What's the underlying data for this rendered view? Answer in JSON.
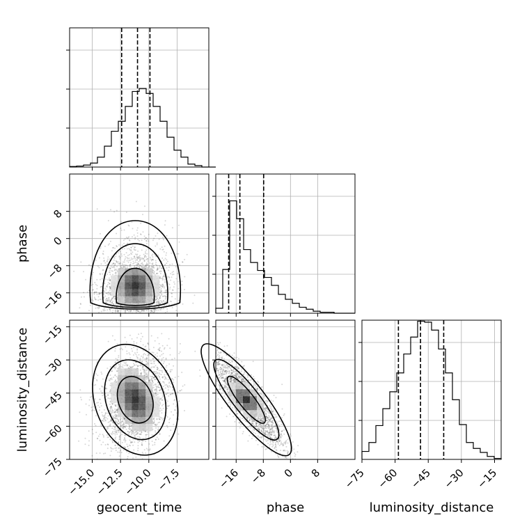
{
  "chart_data": {
    "type": "corner",
    "parameters": [
      "geocent_time",
      "phase",
      "luminosity_distance"
    ],
    "axis_labels": {
      "geocent_time": "geocent_time",
      "phase": "phase",
      "luminosity_distance": "luminosity_distance"
    },
    "ranges": {
      "geocent_time": [
        -17,
        -4.7
      ],
      "phase": [
        -22,
        19
      ],
      "luminosity_distance": [
        -75,
        -12
      ]
    },
    "ticks": {
      "geocent_time": {
        "values": [
          -15,
          -12.5,
          -10,
          -7.5
        ],
        "labels": [
          "−15.0",
          "−12.5",
          "−10.0",
          "−7.5"
        ]
      },
      "phase": {
        "values": [
          -16,
          -8,
          0,
          8
        ],
        "labels": [
          "−16",
          "−8",
          "0",
          "8"
        ]
      },
      "luminosity_distance": {
        "values": [
          -75,
          -60,
          -45,
          -30,
          -15
        ],
        "labels": [
          "−75",
          "−60",
          "−45",
          "−30",
          "−15"
        ]
      }
    },
    "quantiles": {
      "geocent_time": [
        -12.4,
        -11.0,
        -9.9
      ],
      "phase": [
        -18.2,
        -14.9,
        -7.9
      ],
      "luminosity_distance": [
        -58.5,
        -48.5,
        -38.0
      ]
    },
    "histograms": {
      "geocent_time": {
        "bin_start": -17,
        "bin_width": 0.615,
        "heights": [
          0.5,
          1,
          2,
          4,
          10,
          21,
          36,
          46,
          61,
          76,
          79,
          74,
          61,
          46,
          30,
          17,
          10,
          3,
          1.5,
          0,
          0
        ]
      },
      "phase": {
        "bin_start": -22,
        "bin_width": 2.05,
        "heights": [
          5,
          44,
          113,
          95,
          64,
          51,
          43,
          36,
          28,
          19,
          14,
          10,
          6,
          4,
          2,
          1,
          1,
          0,
          0,
          0
        ]
      },
      "luminosity_distance": {
        "bin_start": -75,
        "bin_width": 3.15,
        "heights": [
          8,
          17,
          34,
          51,
          68,
          87,
          106,
          123,
          139,
          138,
          130,
          111,
          87,
          60,
          35,
          17,
          11,
          7,
          3,
          1
        ]
      }
    },
    "histogram_ylim": 140,
    "scatter_centers": {
      "phase_vs_geocent_time": {
        "x": -11.2,
        "y": -13,
        "sx": 1.6,
        "sy": 7
      },
      "luminosity_distance_vs_geocent_time": {
        "x": -11.2,
        "y": -48,
        "sx": 1.6,
        "sy": 11
      },
      "luminosity_distance_vs_phase": {
        "x": -13,
        "y": -48,
        "sx": 5.5,
        "sy": 11
      }
    },
    "grid": true,
    "legend": "none"
  }
}
